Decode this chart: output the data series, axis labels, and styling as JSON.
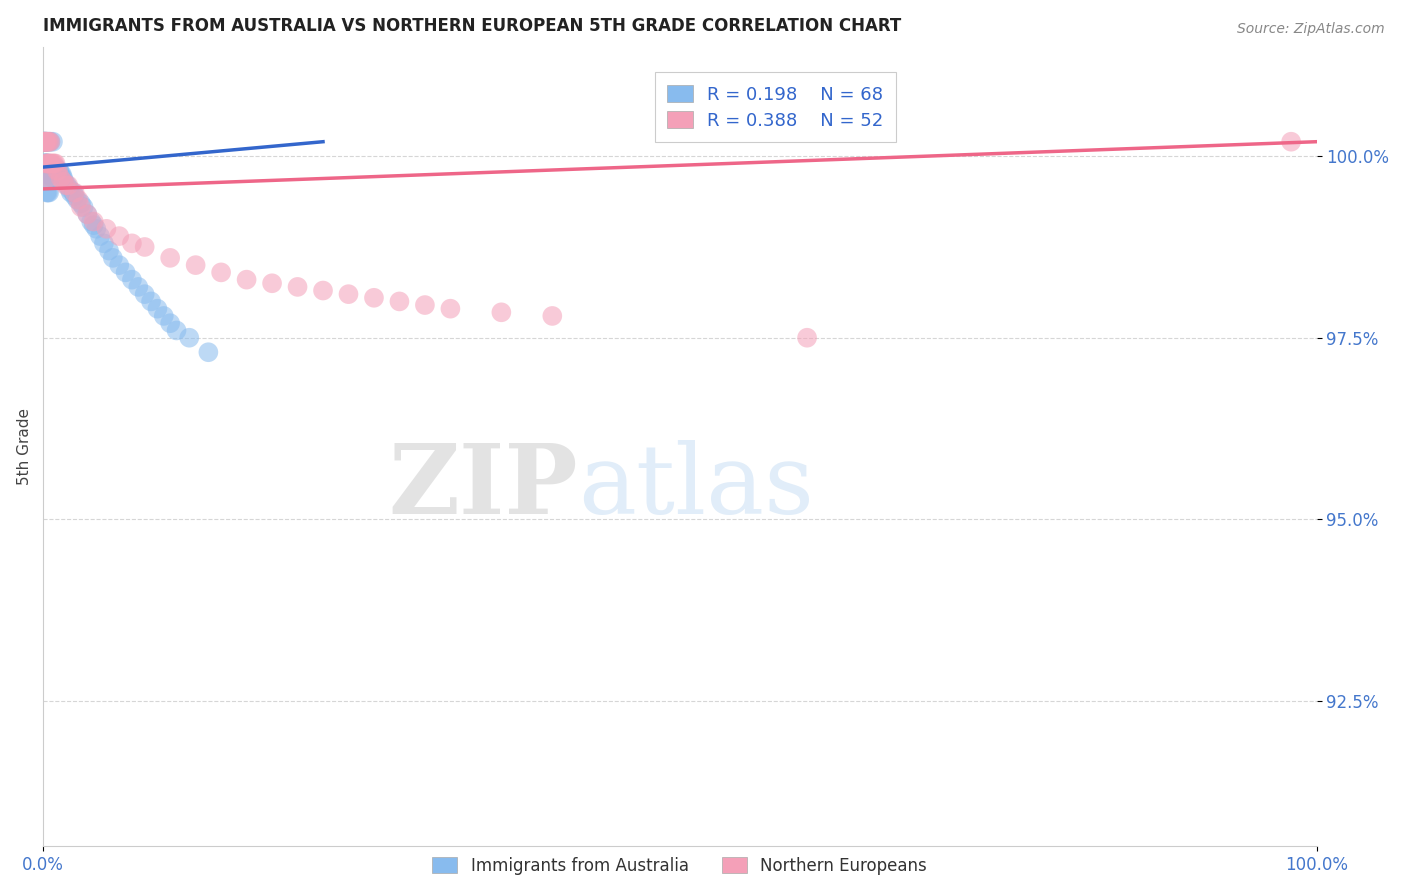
{
  "title": "IMMIGRANTS FROM AUSTRALIA VS NORTHERN EUROPEAN 5TH GRADE CORRELATION CHART",
  "source": "Source: ZipAtlas.com",
  "ylabel": "5th Grade",
  "xlim": [
    0.0,
    1.0
  ],
  "ylim": [
    0.905,
    1.015
  ],
  "yticks": [
    0.925,
    0.95,
    0.975,
    1.0
  ],
  "ytick_labels": [
    "92.5%",
    "95.0%",
    "97.5%",
    "100.0%"
  ],
  "xtick_labels": [
    "0.0%",
    "100.0%"
  ],
  "legend_r_blue": "R = 0.198",
  "legend_n_blue": "N = 68",
  "legend_r_pink": "R = 0.388",
  "legend_n_pink": "N = 52",
  "blue_label": "Immigrants from Australia",
  "pink_label": "Northern Europeans",
  "blue_color": "#88BBEE",
  "pink_color": "#F4A0B8",
  "blue_line_color": "#3366CC",
  "pink_line_color": "#EE6688",
  "title_color": "#222222",
  "axis_label_color": "#444444",
  "tick_label_color": "#4477CC",
  "grid_color": "#CCCCCC",
  "watermark_zip": "ZIP",
  "watermark_atlas": "atlas",
  "blue_x": [
    0.001,
    0.001,
    0.001,
    0.001,
    0.001,
    0.002,
    0.002,
    0.002,
    0.002,
    0.002,
    0.002,
    0.002,
    0.002,
    0.003,
    0.003,
    0.003,
    0.003,
    0.003,
    0.003,
    0.003,
    0.004,
    0.004,
    0.004,
    0.004,
    0.005,
    0.005,
    0.005,
    0.006,
    0.006,
    0.007,
    0.008,
    0.008,
    0.009,
    0.01,
    0.011,
    0.013,
    0.014,
    0.015,
    0.016,
    0.017,
    0.019,
    0.021,
    0.022,
    0.024,
    0.025,
    0.027,
    0.03,
    0.032,
    0.035,
    0.038,
    0.04,
    0.042,
    0.045,
    0.048,
    0.052,
    0.055,
    0.06,
    0.065,
    0.07,
    0.075,
    0.08,
    0.085,
    0.09,
    0.095,
    0.1,
    0.105,
    0.115,
    0.13
  ],
  "blue_y": [
    1.002,
    1.002,
    1.002,
    1.002,
    0.999,
    1.002,
    1.002,
    1.002,
    0.999,
    0.999,
    0.999,
    0.9975,
    0.9975,
    1.002,
    1.002,
    0.999,
    0.999,
    0.9975,
    0.9975,
    0.995,
    1.002,
    0.999,
    0.9975,
    0.995,
    1.002,
    0.999,
    0.995,
    1.002,
    0.9975,
    0.9975,
    1.002,
    0.997,
    0.9975,
    0.9985,
    0.998,
    0.998,
    0.9975,
    0.9975,
    0.997,
    0.9965,
    0.996,
    0.9955,
    0.995,
    0.995,
    0.9945,
    0.994,
    0.9935,
    0.993,
    0.992,
    0.991,
    0.9905,
    0.99,
    0.989,
    0.988,
    0.987,
    0.986,
    0.985,
    0.984,
    0.983,
    0.982,
    0.981,
    0.98,
    0.979,
    0.978,
    0.977,
    0.976,
    0.975,
    0.973
  ],
  "pink_x": [
    0.001,
    0.001,
    0.001,
    0.002,
    0.002,
    0.002,
    0.003,
    0.003,
    0.003,
    0.003,
    0.004,
    0.004,
    0.004,
    0.005,
    0.005,
    0.006,
    0.006,
    0.007,
    0.008,
    0.009,
    0.01,
    0.011,
    0.012,
    0.014,
    0.016,
    0.018,
    0.02,
    0.025,
    0.028,
    0.03,
    0.035,
    0.04,
    0.05,
    0.06,
    0.07,
    0.08,
    0.1,
    0.12,
    0.14,
    0.16,
    0.18,
    0.2,
    0.22,
    0.24,
    0.26,
    0.28,
    0.3,
    0.32,
    0.36,
    0.4,
    0.6,
    0.98
  ],
  "pink_y": [
    1.002,
    1.002,
    1.002,
    1.002,
    1.002,
    1.002,
    1.002,
    1.002,
    0.999,
    0.999,
    1.002,
    0.999,
    0.997,
    1.002,
    0.999,
    1.002,
    0.999,
    0.999,
    0.999,
    0.999,
    0.999,
    0.998,
    0.998,
    0.997,
    0.9965,
    0.996,
    0.996,
    0.995,
    0.994,
    0.993,
    0.992,
    0.991,
    0.99,
    0.989,
    0.988,
    0.9875,
    0.986,
    0.985,
    0.984,
    0.983,
    0.9825,
    0.982,
    0.9815,
    0.981,
    0.9805,
    0.98,
    0.9795,
    0.979,
    0.9785,
    0.978,
    0.975,
    1.002
  ],
  "blue_line_x": [
    0.0,
    0.22
  ],
  "blue_line_y": [
    0.9985,
    1.002
  ],
  "pink_line_x": [
    0.0,
    1.0
  ],
  "pink_line_y": [
    0.9955,
    1.002
  ]
}
